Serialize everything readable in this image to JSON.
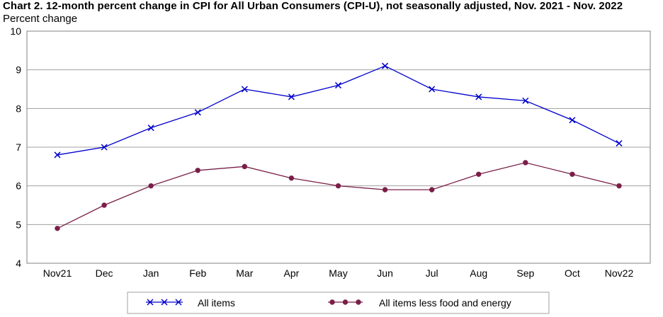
{
  "chart_data": {
    "type": "line",
    "title": "Chart 2. 12-month percent change in CPI for All Urban Consumers (CPI-U), not seasonally adjusted, Nov. 2021 - Nov. 2022",
    "ylabel": "Percent change",
    "xlabel": "",
    "categories": [
      "Nov21",
      "Dec",
      "Jan",
      "Feb",
      "Mar",
      "Apr",
      "May",
      "Jun",
      "Jul",
      "Aug",
      "Sep",
      "Oct",
      "Nov22"
    ],
    "ylim": [
      4,
      10
    ],
    "yticks": [
      "4",
      "5",
      "6",
      "7",
      "8",
      "9",
      "10"
    ],
    "grid": true,
    "legend_position": "bottom",
    "series": [
      {
        "name": "All items",
        "color": "#0000cc",
        "marker": "x",
        "values": [
          6.8,
          7.0,
          7.5,
          7.9,
          8.5,
          8.3,
          8.6,
          9.1,
          8.5,
          8.3,
          8.2,
          7.7,
          7.1
        ]
      },
      {
        "name": "All items less food and energy",
        "color": "#7a1f48",
        "marker": "circle",
        "values": [
          4.9,
          5.5,
          6.0,
          6.4,
          6.5,
          6.2,
          6.0,
          5.9,
          5.9,
          6.3,
          6.6,
          6.3,
          6.0
        ]
      }
    ]
  }
}
